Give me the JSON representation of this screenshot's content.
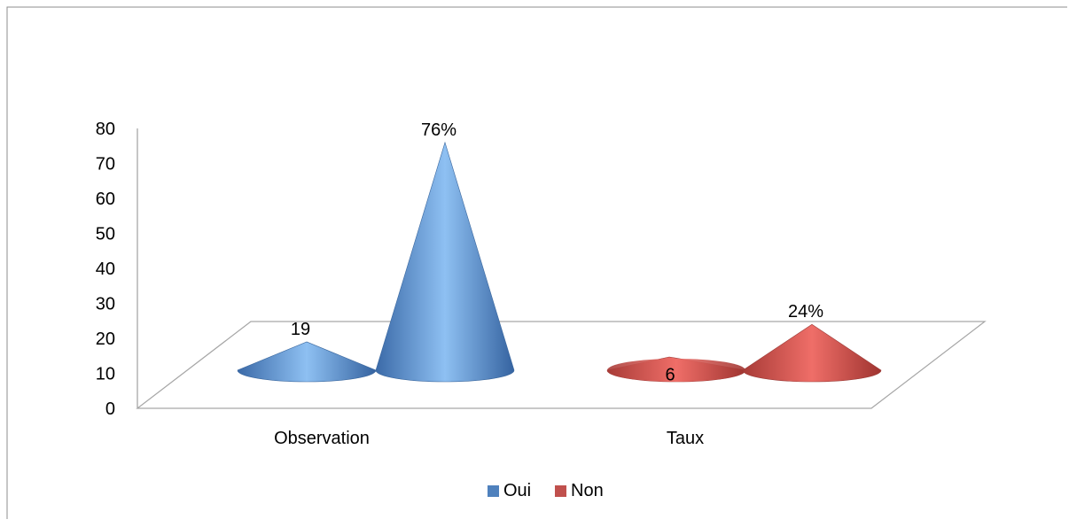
{
  "chart_data": {
    "type": "bar",
    "subtype": "3d-cone",
    "title": "",
    "xlabel": "",
    "ylabel": "",
    "categories": [
      "Observation",
      "Taux"
    ],
    "series": [
      {
        "name": "Oui",
        "values": [
          19,
          76
        ],
        "labels": [
          "19",
          "76%"
        ]
      },
      {
        "name": "Non",
        "values": [
          6,
          24
        ],
        "labels": [
          "6",
          "24%"
        ]
      }
    ],
    "ylim": [
      0,
      80
    ],
    "yticks": [
      "0",
      "10",
      "20",
      "30",
      "40",
      "50",
      "60",
      "70",
      "80"
    ],
    "grid": false,
    "legend_position": "bottom"
  },
  "colors": {
    "Oui": "#4f81bd",
    "Non": "#c0504d"
  }
}
